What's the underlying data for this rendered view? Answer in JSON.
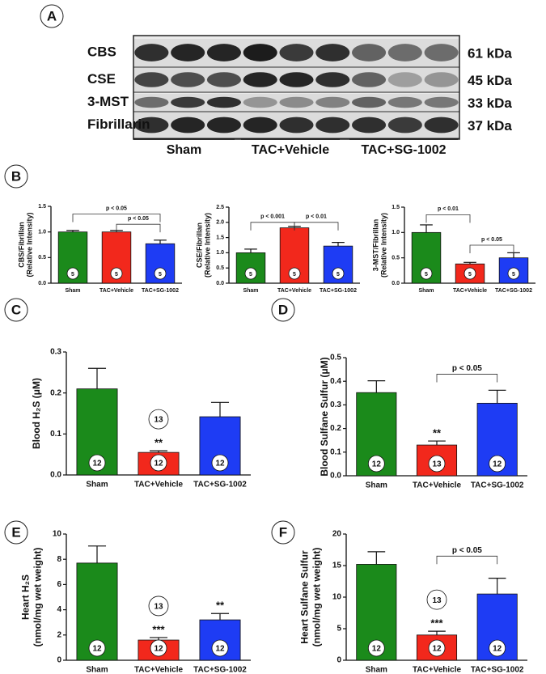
{
  "blot": {
    "label": "A",
    "rows": [
      {
        "name": "CBS",
        "size": "61 kDa"
      },
      {
        "name": "CSE",
        "size": "45 kDa"
      },
      {
        "name": "3-MST",
        "size": "33 kDa"
      },
      {
        "name": "Fibrillarin",
        "size": "37 kDa"
      }
    ],
    "groups": [
      "Sham",
      "TAC+Vehicle",
      "TAC+SG-1002"
    ]
  },
  "chart_data": [
    {
      "type": "bar",
      "label": "B",
      "ylabel": [
        "CBS/Fibrillan",
        "(Relative Intensity)"
      ],
      "categories": [
        "Sham",
        "TAC+Vehicle",
        "TAC+SG-1002"
      ],
      "values": [
        1.0,
        1.0,
        0.77
      ],
      "errors": [
        0.03,
        0.03,
        0.07
      ],
      "colors": [
        "#1b8a1b",
        "#f2281c",
        "#1e3cf4"
      ],
      "n": [
        5,
        5,
        5
      ],
      "comparisons": [
        "p < 0.05",
        "p < 0.05"
      ],
      "ylim": [
        0,
        1.5
      ],
      "yticks": [
        {
          "value": 0,
          "label": "0.0"
        },
        0.5,
        {
          "value": 1,
          "label": "1.0"
        },
        1.5
      ]
    },
    {
      "type": "bar",
      "ylabel": [
        "CSE/Fibrillan",
        "(Relative Intensity)"
      ],
      "categories": [
        "Sham",
        "TAC+Vehicle",
        "TAC+SG-1002"
      ],
      "values": [
        1.0,
        1.82,
        1.22
      ],
      "errors": [
        0.12,
        0.05,
        0.12
      ],
      "colors": [
        "#1b8a1b",
        "#f2281c",
        "#1e3cf4"
      ],
      "n": [
        5,
        5,
        5
      ],
      "comparisons": [
        "p < 0.001",
        "p < 0.01"
      ],
      "ylim": [
        0,
        2.5
      ],
      "yticks": [
        {
          "value": 0,
          "label": "0.0"
        },
        0.5,
        {
          "value": 1,
          "label": "1.0"
        },
        1.5,
        {
          "value": 2,
          "label": "2.0"
        },
        2.5
      ]
    },
    {
      "type": "bar",
      "ylabel": [
        "3-MST/Fibrillan",
        "(Relative Intensity)"
      ],
      "categories": [
        "Sham",
        "TAC+Vehicle",
        "TAC+SG-1002"
      ],
      "values": [
        1.0,
        0.38,
        0.5
      ],
      "errors": [
        0.15,
        0.03,
        0.1
      ],
      "colors": [
        "#1b8a1b",
        "#f2281c",
        "#1e3cf4"
      ],
      "n": [
        5,
        5,
        5
      ],
      "comparisons": [
        "p < 0.01",
        "p < 0.05"
      ],
      "ylim": [
        0,
        1.5
      ],
      "yticks": [
        {
          "value": 0,
          "label": "0.0"
        },
        0.5,
        {
          "value": 1,
          "label": "1.0"
        },
        1.5
      ]
    },
    {
      "type": "bar",
      "label": "C",
      "ylabel": [
        "Blood H₂S (μM)"
      ],
      "categories": [
        "Sham",
        "TAC+Vehicle",
        "TAC+SG-1002"
      ],
      "values": [
        0.21,
        0.055,
        0.142
      ],
      "errors": [
        0.05,
        0.004,
        0.035
      ],
      "colors": [
        "#1b8a1b",
        "#f2281c",
        "#1e3cf4"
      ],
      "n": [
        12,
        12,
        12
      ],
      "n_extra": [
        null,
        13,
        null
      ],
      "stars": [
        null,
        "**",
        null
      ],
      "ylim": [
        0,
        0.3
      ],
      "yticks": [
        {
          "value": 0,
          "label": "0.0"
        },
        0.1,
        0.2,
        0.3
      ]
    },
    {
      "type": "bar",
      "label": "D",
      "ylabel": [
        "Blood Sulfane Sulfur (μM)"
      ],
      "categories": [
        "Sham",
        "TAC+Vehicle",
        "TAC+SG-1002"
      ],
      "values": [
        0.352,
        0.13,
        0.307
      ],
      "errors": [
        0.05,
        0.017,
        0.055
      ],
      "colors": [
        "#1b8a1b",
        "#f2281c",
        "#1e3cf4"
      ],
      "n": [
        12,
        13,
        12
      ],
      "stars": [
        null,
        "**",
        null
      ],
      "comparisons": [
        "p < 0.05"
      ],
      "ylim": [
        0,
        0.5
      ],
      "yticks": [
        {
          "value": 0,
          "label": "0.0"
        },
        0.1,
        0.2,
        0.3,
        0.4,
        0.5
      ]
    },
    {
      "type": "bar",
      "label": "E",
      "ylabel": [
        "Heart H₂S",
        "(nmol/mg wet weight)"
      ],
      "categories": [
        "Sham",
        "TAC+Vehicle",
        "TAC+SG-1002"
      ],
      "values": [
        7.7,
        1.6,
        3.2
      ],
      "errors": [
        1.35,
        0.2,
        0.5
      ],
      "colors": [
        "#1b8a1b",
        "#f2281c",
        "#1e3cf4"
      ],
      "n": [
        12,
        12,
        12
      ],
      "n_extra": [
        null,
        13,
        null
      ],
      "stars": [
        null,
        "***",
        "**"
      ],
      "ylim": [
        0,
        10
      ],
      "yticks": [
        0,
        2,
        4,
        6,
        8,
        10
      ]
    },
    {
      "type": "bar",
      "label": "F",
      "ylabel": [
        "Heart Sulfane Sulfur",
        "(nmol/mg wet weight)"
      ],
      "categories": [
        "Sham",
        "TAC+Vehicle",
        "TAC+SG-1002"
      ],
      "values": [
        15.2,
        4.0,
        10.5
      ],
      "errors": [
        2.0,
        0.6,
        2.5
      ],
      "colors": [
        "#1b8a1b",
        "#f2281c",
        "#1e3cf4"
      ],
      "n": [
        12,
        12,
        12
      ],
      "n_extra": [
        null,
        13,
        null
      ],
      "stars": [
        null,
        "***",
        null
      ],
      "comparisons": [
        "p < 0.05"
      ],
      "ylim": [
        0,
        20
      ],
      "yticks": [
        0,
        5,
        10,
        15,
        20
      ]
    }
  ]
}
